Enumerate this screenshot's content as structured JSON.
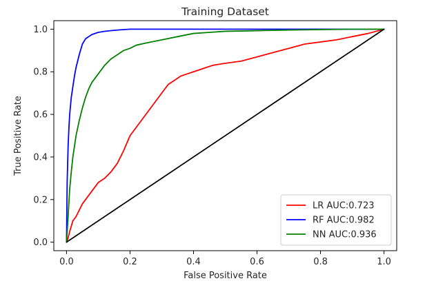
{
  "chart_data": {
    "type": "line",
    "title": "Training Dataset",
    "xlabel": "False Positive Rate",
    "ylabel": "True Positive Rate",
    "xlim": [
      -0.04,
      1.04
    ],
    "ylim": [
      -0.04,
      1.04
    ],
    "xticks": [
      0.0,
      0.2,
      0.4,
      0.6,
      0.8,
      1.0
    ],
    "yticks": [
      0.0,
      0.2,
      0.4,
      0.6,
      0.8,
      1.0
    ],
    "xtick_labels": [
      "0.0",
      "0.2",
      "0.4",
      "0.6",
      "0.8",
      "1.0"
    ],
    "ytick_labels": [
      "0.0",
      "0.2",
      "0.4",
      "0.6",
      "0.8",
      "1.0"
    ],
    "grid": false,
    "legend_position": "lower-right",
    "series": [
      {
        "name": "LR AUC:0.723",
        "color": "#ff0000",
        "x": [
          0,
          0.005,
          0.01,
          0.02,
          0.03,
          0.04,
          0.05,
          0.06,
          0.07,
          0.08,
          0.1,
          0.12,
          0.14,
          0.16,
          0.18,
          0.2,
          0.22,
          0.24,
          0.26,
          0.28,
          0.3,
          0.32,
          0.34,
          0.36,
          0.38,
          0.4,
          0.42,
          0.44,
          0.46,
          0.48,
          0.5,
          0.55,
          0.6,
          0.65,
          0.7,
          0.75,
          0.8,
          0.85,
          0.9,
          0.95,
          1.0
        ],
        "y": [
          0,
          0.02,
          0.05,
          0.1,
          0.12,
          0.15,
          0.18,
          0.2,
          0.22,
          0.24,
          0.28,
          0.3,
          0.33,
          0.37,
          0.43,
          0.5,
          0.54,
          0.58,
          0.62,
          0.66,
          0.7,
          0.74,
          0.76,
          0.78,
          0.79,
          0.8,
          0.81,
          0.82,
          0.83,
          0.835,
          0.84,
          0.85,
          0.87,
          0.89,
          0.91,
          0.93,
          0.94,
          0.95,
          0.965,
          0.98,
          1.0
        ]
      },
      {
        "name": "RF AUC:0.982",
        "color": "#0000ff",
        "x": [
          0,
          0.002,
          0.005,
          0.008,
          0.01,
          0.015,
          0.02,
          0.025,
          0.03,
          0.04,
          0.05,
          0.06,
          0.07,
          0.08,
          0.1,
          0.12,
          0.14,
          0.16,
          0.18,
          0.2,
          0.25,
          0.3,
          0.4,
          0.5,
          0.6,
          0.7,
          0.8,
          0.9,
          1.0
        ],
        "y": [
          0,
          0.28,
          0.45,
          0.55,
          0.6,
          0.68,
          0.73,
          0.78,
          0.82,
          0.88,
          0.93,
          0.955,
          0.965,
          0.975,
          0.985,
          0.99,
          0.993,
          0.996,
          0.998,
          1.0,
          1.0,
          1.0,
          1.0,
          1.0,
          1.0,
          1.0,
          1.0,
          1.0,
          1.0
        ]
      },
      {
        "name": "NN AUC:0.936",
        "color": "#008000",
        "x": [
          0,
          0.005,
          0.01,
          0.015,
          0.02,
          0.03,
          0.04,
          0.05,
          0.06,
          0.07,
          0.08,
          0.1,
          0.12,
          0.14,
          0.16,
          0.18,
          0.2,
          0.22,
          0.25,
          0.3,
          0.35,
          0.4,
          0.45,
          0.5,
          0.6,
          0.7,
          0.8,
          0.9,
          1.0
        ],
        "y": [
          0,
          0.12,
          0.25,
          0.33,
          0.4,
          0.5,
          0.57,
          0.63,
          0.68,
          0.72,
          0.75,
          0.79,
          0.83,
          0.86,
          0.88,
          0.9,
          0.91,
          0.925,
          0.935,
          0.95,
          0.965,
          0.98,
          0.985,
          0.99,
          0.993,
          0.996,
          0.998,
          1.0,
          1.0
        ]
      },
      {
        "name": "",
        "color": "#000000",
        "x": [
          0,
          1
        ],
        "y": [
          0,
          1
        ]
      }
    ]
  }
}
